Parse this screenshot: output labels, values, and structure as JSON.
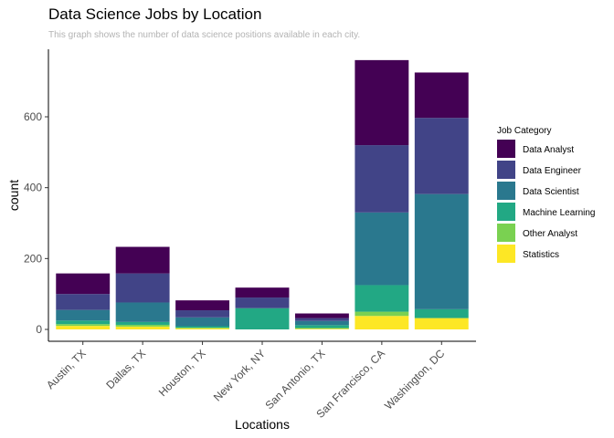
{
  "chart_data": {
    "type": "bar",
    "stacked": true,
    "title": "Data Science Jobs by Location",
    "subtitle": "This graph shows the number of data science positions available in each city.",
    "xlabel": "Locations",
    "ylabel": "count",
    "ylim": [
      0,
      760
    ],
    "yticks": [
      0,
      200,
      400,
      600
    ],
    "grid": false,
    "legend_title": "Job Category",
    "legend_position": "right",
    "categories": [
      "Austin, TX",
      "Dallas, TX",
      "Houston, TX",
      "New York, NY",
      "San Antonio, TX",
      "San Francisco, CA",
      "Washington, DC"
    ],
    "series": [
      {
        "name": "Statistics",
        "color": "#fde725",
        "values": [
          10,
          8,
          3,
          0,
          2,
          38,
          32
        ]
      },
      {
        "name": "Other Analyst",
        "color": "#7ad151",
        "values": [
          5,
          5,
          2,
          0,
          2,
          12,
          0
        ]
      },
      {
        "name": "Machine Learning",
        "color": "#22a884",
        "values": [
          10,
          8,
          4,
          60,
          8,
          75,
          25
        ]
      },
      {
        "name": "Data Scientist",
        "color": "#2a788e",
        "values": [
          30,
          55,
          25,
          0,
          12,
          205,
          325
        ]
      },
      {
        "name": "Data Engineer",
        "color": "#414487",
        "values": [
          45,
          82,
          20,
          30,
          8,
          190,
          215
        ]
      },
      {
        "name": "Data Analyst",
        "color": "#440154",
        "values": [
          58,
          75,
          28,
          28,
          13,
          240,
          128
        ]
      }
    ],
    "legend_order": [
      "Data Analyst",
      "Data Engineer",
      "Data Scientist",
      "Machine Learning",
      "Other Analyst",
      "Statistics"
    ]
  }
}
